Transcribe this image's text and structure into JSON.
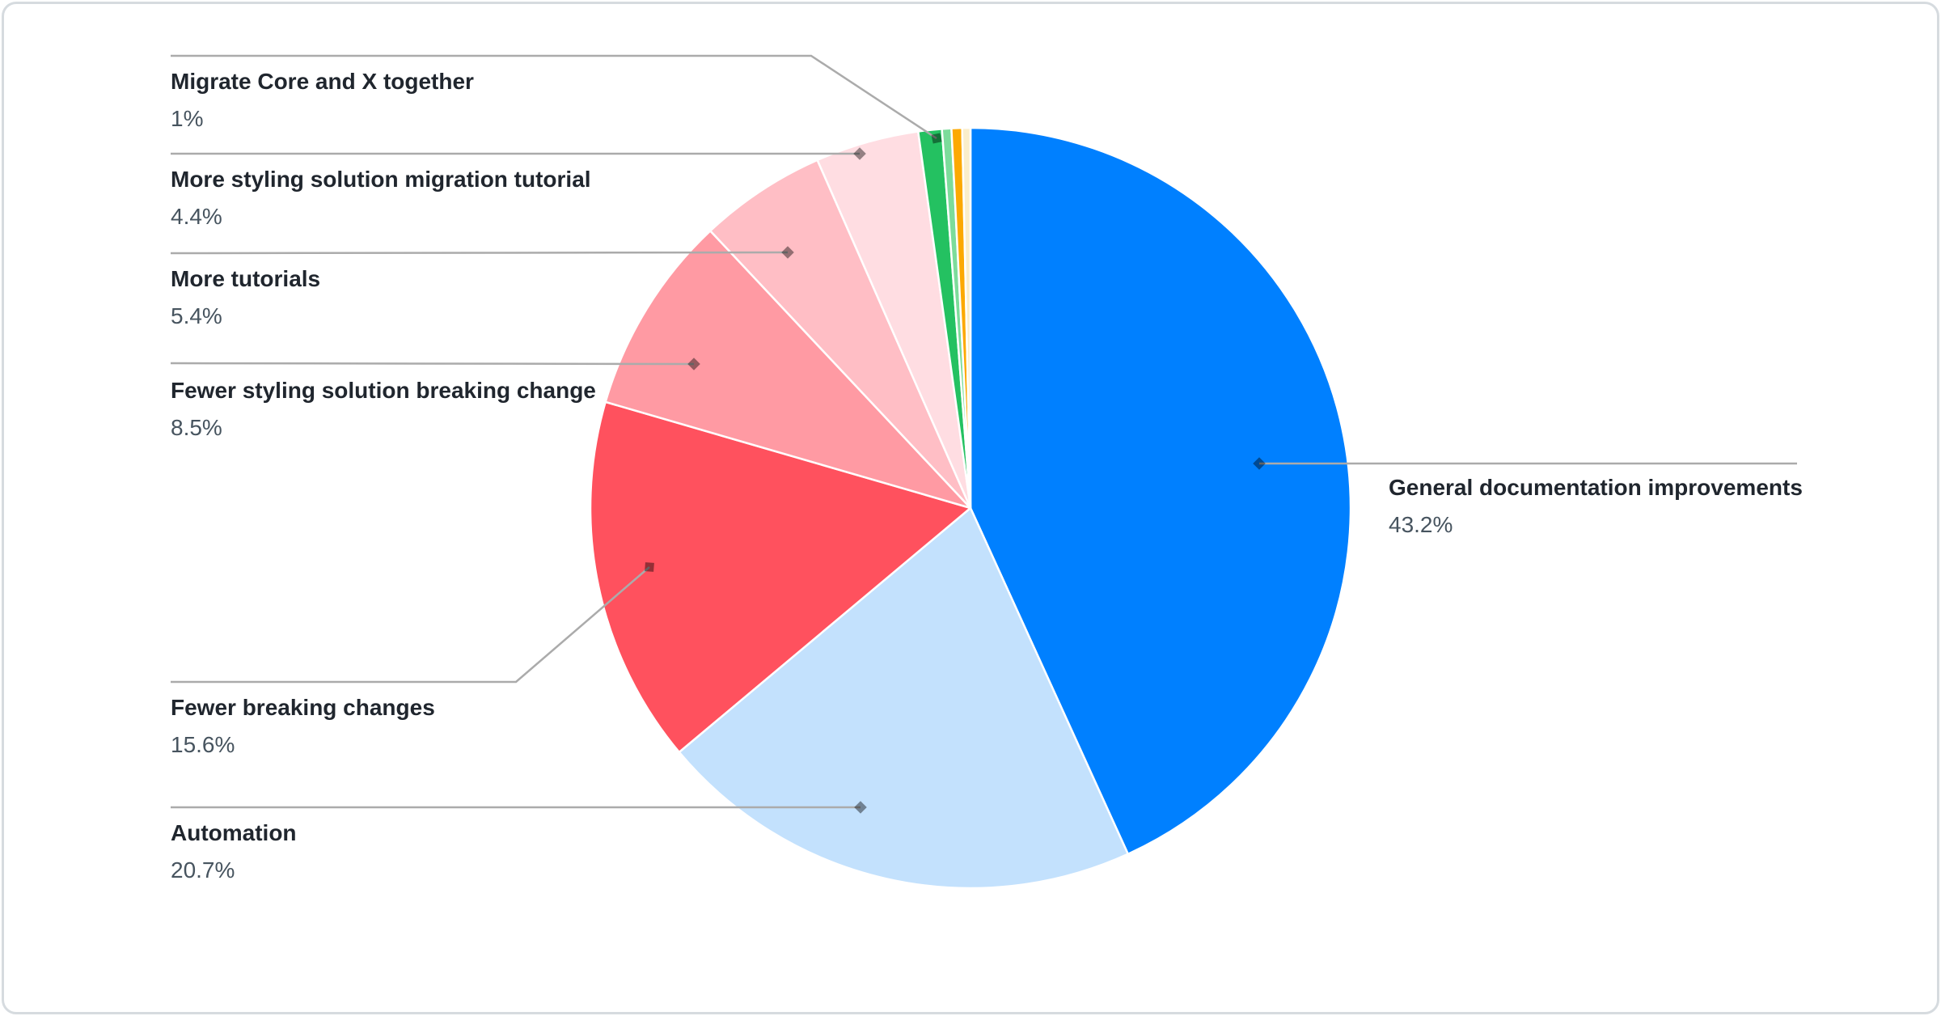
{
  "chart_data": {
    "type": "pie",
    "title": "",
    "direction": "clockwise",
    "start_angle_deg": 0,
    "slices": [
      {
        "label": "General documentation improvements",
        "value": 43.2,
        "display": "43.2%",
        "color": "#0080FF"
      },
      {
        "label": "Automation",
        "value": 20.7,
        "display": "20.7%",
        "color": "#C3E1FD"
      },
      {
        "label": "Fewer breaking changes",
        "value": 15.6,
        "display": "15.6%",
        "color": "#FF515E"
      },
      {
        "label": "Fewer styling solution breaking change",
        "value": 8.5,
        "display": "8.5%",
        "color": "#FF9AA3"
      },
      {
        "label": "More tutorials",
        "value": 5.4,
        "display": "5.4%",
        "color": "#FFBEC5"
      },
      {
        "label": "More styling solution migration tutorial",
        "value": 4.4,
        "display": "4.4%",
        "color": "#FFDDE2"
      },
      {
        "label": "Migrate Core and X together",
        "value": 1,
        "display": "1%",
        "color": "#24C161"
      },
      {
        "label": "",
        "value": 0.4,
        "display": "",
        "color": "#7CDC9B"
      },
      {
        "label": "",
        "value": 0.45,
        "display": "",
        "color": "#FCA902"
      },
      {
        "label": "",
        "value": 0.35,
        "display": "",
        "color": "#FAEECB"
      }
    ],
    "slice_border_color": "#ffffff",
    "leader_line_color": "#ababab",
    "marker_color": "rgba(0,0,0,0.42)",
    "title_text_color": "#20262e",
    "percent_text_color": "#47545f",
    "card_border_color": "#d6dbdf"
  }
}
